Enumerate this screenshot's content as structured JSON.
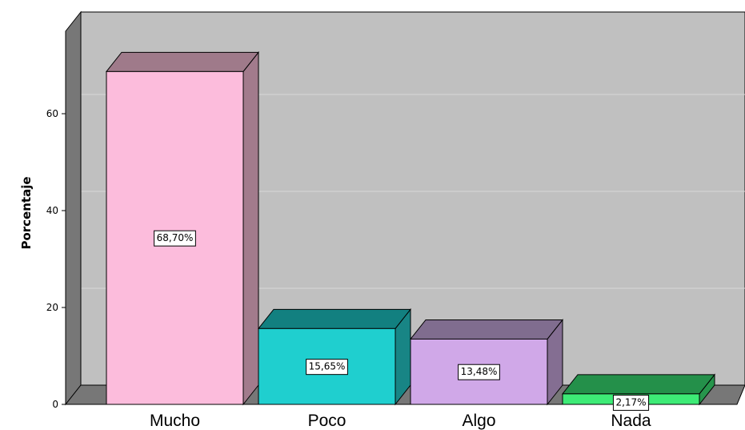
{
  "chart_data": {
    "type": "bar",
    "style": "3d",
    "categories": [
      "Mucho",
      "Poco",
      "Algo",
      "Nada"
    ],
    "values": [
      68.7,
      15.65,
      13.48,
      2.17
    ],
    "data_labels": [
      "68,70%",
      "15,65%",
      "13,48%",
      "2,17%"
    ],
    "ylabel": "Porcentaje",
    "xlabel": "",
    "title": "",
    "ylim": [
      0,
      70
    ],
    "yticks": [
      {
        "value": 0,
        "label": "0"
      },
      {
        "value": 20,
        "label": "20"
      },
      {
        "value": 40,
        "label": "40"
      },
      {
        "value": 60,
        "label": "60"
      }
    ],
    "grid": true,
    "legend": "none",
    "colors": {
      "wall": "#c0c0c0",
      "side_wall": "#777777",
      "floor": "#777777",
      "gridline": "#d8d8d8",
      "bars": [
        {
          "front": "#fcbcdc",
          "side": "#a27b8c",
          "top": "#9f7a8a"
        },
        {
          "front": "#1fcfcf",
          "side": "#188585",
          "top": "#128080"
        },
        {
          "front": "#d0a8e8",
          "side": "#846e92",
          "top": "#806d8f"
        },
        {
          "front": "#3deb76",
          "side": "#27954c",
          "top": "#24904a"
        }
      ]
    }
  }
}
